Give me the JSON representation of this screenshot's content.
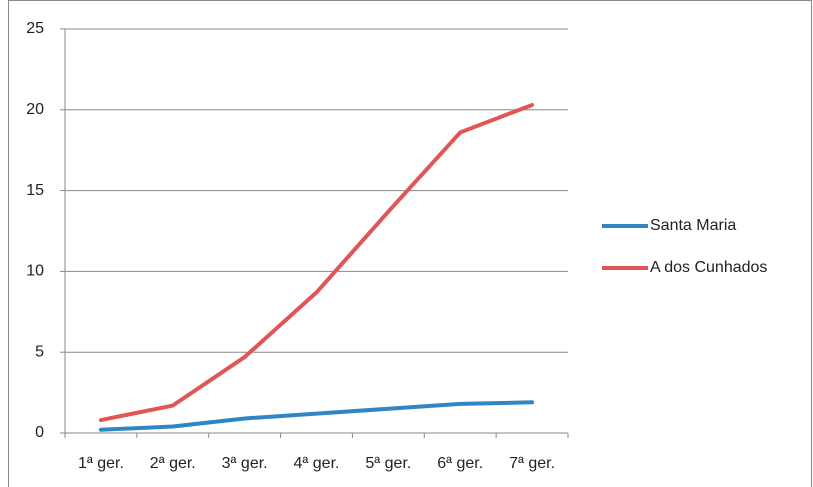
{
  "chart_data": {
    "type": "line",
    "categories": [
      "1ª ger.",
      "2ª ger.",
      "3ª ger.",
      "4ª ger.",
      "5ª ger.",
      "6ª ger.",
      "7ª ger."
    ],
    "series": [
      {
        "name": "Santa Maria",
        "color": "#2f86c6",
        "values": [
          0.2,
          0.4,
          0.9,
          1.2,
          1.5,
          1.8,
          1.9
        ]
      },
      {
        "name": "A dos Cunhados",
        "color": "#e05656",
        "values": [
          0.8,
          1.7,
          4.7,
          8.7,
          13.7,
          18.6,
          20.3
        ]
      }
    ],
    "ylim": [
      0,
      25
    ],
    "yticks": [
      0,
      5,
      10,
      15,
      20,
      25
    ],
    "grid": true,
    "legend": "right"
  }
}
